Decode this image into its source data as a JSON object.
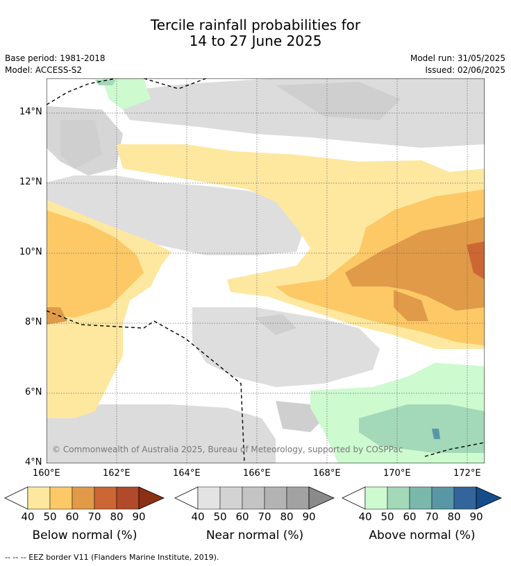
{
  "title_line1": "Tercile rainfall probabilities for",
  "title_line2": "14 to 27 June 2025",
  "base_period": "Base period: 1981-2018",
  "model": "Model: ACCESS-S2",
  "model_run": "Model run: 31/05/2025",
  "issued": "Issued: 02/06/2025",
  "lat_ticks": [
    "14°N",
    "12°N",
    "10°N",
    "8°N",
    "6°N",
    "4°N"
  ],
  "lon_ticks": [
    "160°E",
    "162°E",
    "164°E",
    "166°E",
    "168°E",
    "170°E",
    "172°E"
  ],
  "copyright": "© Commonwealth of Australia 2025, Bureau of Meteorology, supported by COSPPac",
  "colorbars": [
    {
      "label": "Below normal (%)",
      "ticks": [
        "40",
        "50",
        "60",
        "70",
        "80",
        "90"
      ],
      "colors": [
        "#fee8a0",
        "#fdc966",
        "#e09a48",
        "#cc6633",
        "#b04a2a",
        "#8c3014"
      ]
    },
    {
      "label": "Near normal (%)",
      "ticks": [
        "40",
        "50",
        "60",
        "70",
        "80",
        "90"
      ],
      "colors": [
        "#e3e3e3",
        "#d3d3d3",
        "#c4c4c4",
        "#b3b3b3",
        "#a2a2a2",
        "#8a8a8a"
      ]
    },
    {
      "label": "Above normal (%)",
      "ticks": [
        "40",
        "50",
        "60",
        "70",
        "80",
        "90"
      ],
      "colors": [
        "#cdfacf",
        "#a3d8b8",
        "#7ab8ac",
        "#5a97a6",
        "#34659a",
        "#154d8a"
      ]
    }
  ],
  "footer": "--  --  -- EEZ border V11 (Flanders Marine Institute, 2019)."
}
